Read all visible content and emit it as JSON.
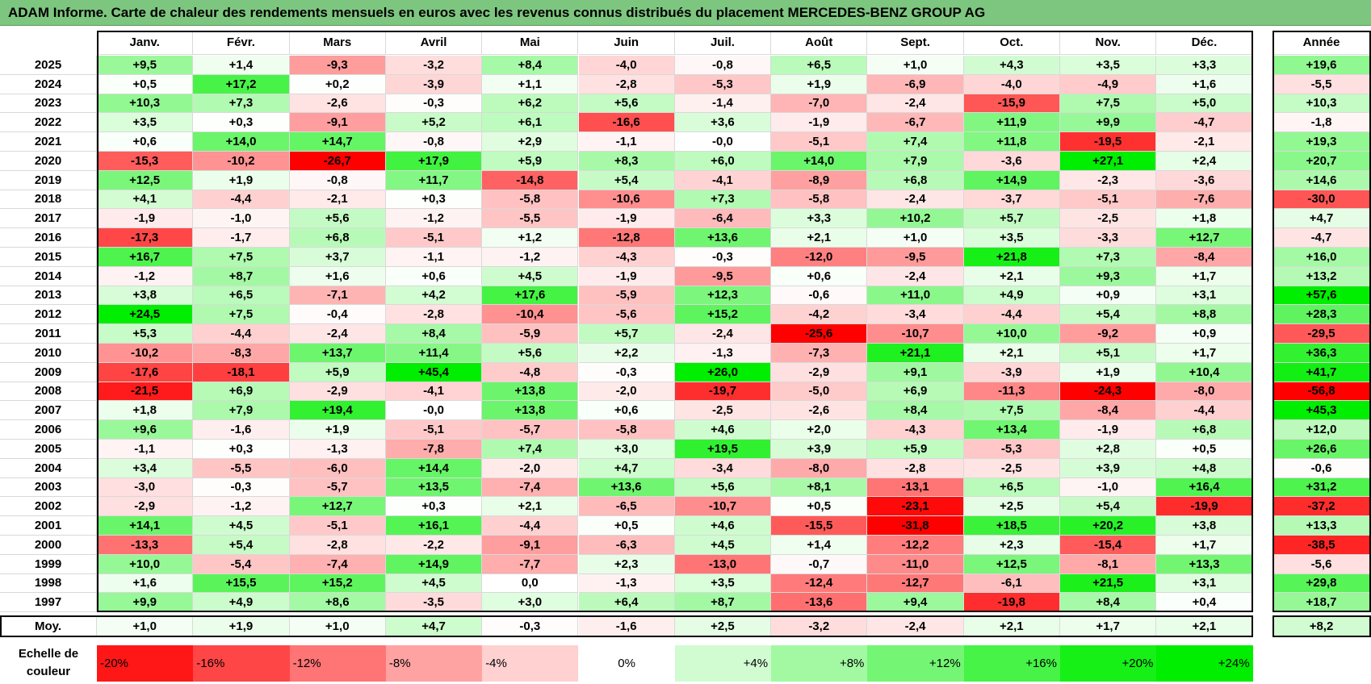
{
  "title": "ADAM Informe. Carte de chaleur des rendements mensuels en euros avec les revenus connus distribués du placement MERCEDES-BENZ GROUP AG",
  "chart_data": {
    "type": "heatmap",
    "title": "ADAM Informe. Carte de chaleur des rendements mensuels en euros avec les revenus connus distribués du placement MERCEDES-BENZ GROUP AG",
    "columns": [
      "Janv.",
      "Févr.",
      "Mars",
      "Avril",
      "Mai",
      "Juin",
      "Juil.",
      "Août",
      "Sept.",
      "Oct.",
      "Nov.",
      "Déc."
    ],
    "year_column_label": "Année",
    "rows": [
      {
        "year": "2025",
        "values": [
          "+9,5",
          "+1,4",
          "-9,3",
          "-3,2",
          "+8,4",
          "-4,0",
          "-0,8",
          "+6,5",
          "+1,0",
          "+4,3",
          "+3,5",
          "+3,3"
        ],
        "annual": "+19,6"
      },
      {
        "year": "2024",
        "values": [
          "+0,5",
          "+17,2",
          "+0,2",
          "-3,9",
          "+1,1",
          "-2,8",
          "-5,3",
          "+1,9",
          "-6,9",
          "-4,0",
          "-4,9",
          "+1,6"
        ],
        "annual": "-5,5"
      },
      {
        "year": "2023",
        "values": [
          "+10,3",
          "+7,3",
          "-2,6",
          "-0,3",
          "+6,2",
          "+5,6",
          "-1,4",
          "-7,0",
          "-2,4",
          "-15,9",
          "+7,5",
          "+5,0"
        ],
        "annual": "+10,3"
      },
      {
        "year": "2022",
        "values": [
          "+3,5",
          "+0,3",
          "-9,1",
          "+5,2",
          "+6,1",
          "-16,6",
          "+3,6",
          "-1,9",
          "-6,7",
          "+11,9",
          "+9,9",
          "-4,7"
        ],
        "annual": "-1,8"
      },
      {
        "year": "2021",
        "values": [
          "+0,6",
          "+14,0",
          "+14,7",
          "-0,8",
          "+2,9",
          "-1,1",
          "-0,0",
          "-5,1",
          "+7,4",
          "+11,8",
          "-19,5",
          "-2,1"
        ],
        "annual": "+19,3"
      },
      {
        "year": "2020",
        "values": [
          "-15,3",
          "-10,2",
          "-26,7",
          "+17,9",
          "+5,9",
          "+8,3",
          "+6,0",
          "+14,0",
          "+7,9",
          "-3,6",
          "+27,1",
          "+2,4"
        ],
        "annual": "+20,7"
      },
      {
        "year": "2019",
        "values": [
          "+12,5",
          "+1,9",
          "-0,8",
          "+11,7",
          "-14,8",
          "+5,4",
          "-4,1",
          "-8,9",
          "+6,8",
          "+14,9",
          "-2,3",
          "-3,6"
        ],
        "annual": "+14,6"
      },
      {
        "year": "2018",
        "values": [
          "+4,1",
          "-4,4",
          "-2,1",
          "+0,3",
          "-5,8",
          "-10,6",
          "+7,3",
          "-5,8",
          "-2,4",
          "-3,7",
          "-5,1",
          "-7,6"
        ],
        "annual": "-30,0"
      },
      {
        "year": "2017",
        "values": [
          "-1,9",
          "-1,0",
          "+5,6",
          "-1,2",
          "-5,5",
          "-1,9",
          "-6,4",
          "+3,3",
          "+10,2",
          "+5,7",
          "-2,5",
          "+1,8"
        ],
        "annual": "+4,7"
      },
      {
        "year": "2016",
        "values": [
          "-17,3",
          "-1,7",
          "+6,8",
          "-5,1",
          "+1,2",
          "-12,8",
          "+13,6",
          "+2,1",
          "+1,0",
          "+3,5",
          "-3,3",
          "+12,7"
        ],
        "annual": "-4,7"
      },
      {
        "year": "2015",
        "values": [
          "+16,7",
          "+7,5",
          "+3,7",
          "-1,1",
          "-1,2",
          "-4,3",
          "-0,3",
          "-12,0",
          "-9,5",
          "+21,8",
          "+7,3",
          "-8,4"
        ],
        "annual": "+16,0"
      },
      {
        "year": "2014",
        "values": [
          "-1,2",
          "+8,7",
          "+1,6",
          "+0,6",
          "+4,5",
          "-1,9",
          "-9,5",
          "+0,6",
          "-2,4",
          "+2,1",
          "+9,3",
          "+1,7"
        ],
        "annual": "+13,2"
      },
      {
        "year": "2013",
        "values": [
          "+3,8",
          "+6,5",
          "-7,1",
          "+4,2",
          "+17,6",
          "-5,9",
          "+12,3",
          "-0,6",
          "+11,0",
          "+4,9",
          "+0,9",
          "+3,1"
        ],
        "annual": "+57,6"
      },
      {
        "year": "2012",
        "values": [
          "+24,5",
          "+7,5",
          "-0,4",
          "-2,8",
          "-10,4",
          "-5,6",
          "+15,2",
          "-4,2",
          "-3,4",
          "-4,4",
          "+5,4",
          "+8,8"
        ],
        "annual": "+28,3"
      },
      {
        "year": "2011",
        "values": [
          "+5,3",
          "-4,4",
          "-2,4",
          "+8,4",
          "-5,9",
          "+5,7",
          "-2,4",
          "-25,6",
          "-10,7",
          "+10,0",
          "-9,2",
          "+0,9"
        ],
        "annual": "-29,5"
      },
      {
        "year": "2010",
        "values": [
          "-10,2",
          "-8,3",
          "+13,7",
          "+11,4",
          "+5,6",
          "+2,2",
          "-1,3",
          "-7,3",
          "+21,1",
          "+2,1",
          "+5,1",
          "+1,7"
        ],
        "annual": "+36,3"
      },
      {
        "year": "2009",
        "values": [
          "-17,6",
          "-18,1",
          "+5,9",
          "+45,4",
          "-4,8",
          "-0,3",
          "+26,0",
          "-2,9",
          "+9,1",
          "-3,9",
          "+1,9",
          "+10,4"
        ],
        "annual": "+41,7"
      },
      {
        "year": "2008",
        "values": [
          "-21,5",
          "+6,9",
          "-2,9",
          "-4,1",
          "+13,8",
          "-2,0",
          "-19,7",
          "-5,0",
          "+6,9",
          "-11,3",
          "-24,3",
          "-8,0"
        ],
        "annual": "-56,8"
      },
      {
        "year": "2007",
        "values": [
          "+1,8",
          "+7,9",
          "+19,4",
          "-0,0",
          "+13,8",
          "+0,6",
          "-2,5",
          "-2,6",
          "+8,4",
          "+7,5",
          "-8,4",
          "-4,4"
        ],
        "annual": "+45,3"
      },
      {
        "year": "2006",
        "values": [
          "+9,6",
          "-1,6",
          "+1,9",
          "-5,1",
          "-5,7",
          "-5,8",
          "+4,6",
          "+2,0",
          "-4,3",
          "+13,4",
          "-1,9",
          "+6,8"
        ],
        "annual": "+12,0"
      },
      {
        "year": "2005",
        "values": [
          "-1,1",
          "+0,3",
          "-1,3",
          "-7,8",
          "+7,4",
          "+3,0",
          "+19,5",
          "+3,9",
          "+5,9",
          "-5,3",
          "+2,8",
          "+0,5"
        ],
        "annual": "+26,6"
      },
      {
        "year": "2004",
        "values": [
          "+3,4",
          "-5,5",
          "-6,0",
          "+14,4",
          "-2,0",
          "+4,7",
          "-3,4",
          "-8,0",
          "-2,8",
          "-2,5",
          "+3,9",
          "+4,8"
        ],
        "annual": "-0,6"
      },
      {
        "year": "2003",
        "values": [
          "-3,0",
          "-0,3",
          "-5,7",
          "+13,5",
          "-7,4",
          "+13,6",
          "+5,6",
          "+8,1",
          "-13,1",
          "+6,5",
          "-1,0",
          "+16,4"
        ],
        "annual": "+31,2"
      },
      {
        "year": "2002",
        "values": [
          "-2,9",
          "-1,2",
          "+12,7",
          "+0,3",
          "+2,1",
          "-6,5",
          "-10,7",
          "+0,5",
          "-23,1",
          "+2,5",
          "+5,4",
          "-19,9"
        ],
        "annual": "-37,2"
      },
      {
        "year": "2001",
        "values": [
          "+14,1",
          "+4,5",
          "-5,1",
          "+16,1",
          "-4,4",
          "+0,5",
          "+4,6",
          "-15,5",
          "-31,8",
          "+18,5",
          "+20,2",
          "+3,8"
        ],
        "annual": "+13,3"
      },
      {
        "year": "2000",
        "values": [
          "-13,3",
          "+5,4",
          "-2,8",
          "-2,2",
          "-9,1",
          "-6,3",
          "+4,5",
          "+1,4",
          "-12,2",
          "+2,3",
          "-15,4",
          "+1,7"
        ],
        "annual": "-38,5"
      },
      {
        "year": "1999",
        "values": [
          "+10,0",
          "-5,4",
          "-7,4",
          "+14,9",
          "-7,7",
          "+2,3",
          "-13,0",
          "-0,7",
          "-11,0",
          "+12,5",
          "-8,1",
          "+13,3"
        ],
        "annual": "-5,6"
      },
      {
        "year": "1998",
        "values": [
          "+1,6",
          "+15,5",
          "+15,2",
          "+4,5",
          "0,0",
          "-1,3",
          "+3,5",
          "-12,4",
          "-12,7",
          "-6,1",
          "+21,5",
          "+3,1"
        ],
        "annual": "+29,8"
      },
      {
        "year": "1997",
        "values": [
          "+9,9",
          "+4,9",
          "+8,6",
          "-3,5",
          "+3,0",
          "+6,4",
          "+8,7",
          "-13,6",
          "+9,4",
          "-19,8",
          "+8,4",
          "+0,4"
        ],
        "annual": "+18,7"
      }
    ],
    "average": {
      "label": "Moy.",
      "values": [
        "+1,0",
        "+1,9",
        "+1,0",
        "+4,7",
        "-0,3",
        "-1,6",
        "+2,5",
        "-3,2",
        "-2,4",
        "+2,1",
        "+1,7",
        "+2,1"
      ],
      "annual": "+8,2"
    },
    "color_scale": {
      "label_line1": "Echelle de",
      "label_line2": "couleur",
      "stops": [
        "-20%",
        "-16%",
        "-12%",
        "-8%",
        "-4%",
        "0%",
        "+4%",
        "+8%",
        "+12%",
        "+16%",
        "+20%",
        "+24%"
      ],
      "negative_color": "#ff0000",
      "neutral_color": "#ffffff",
      "positive_color": "#00ee00"
    }
  }
}
